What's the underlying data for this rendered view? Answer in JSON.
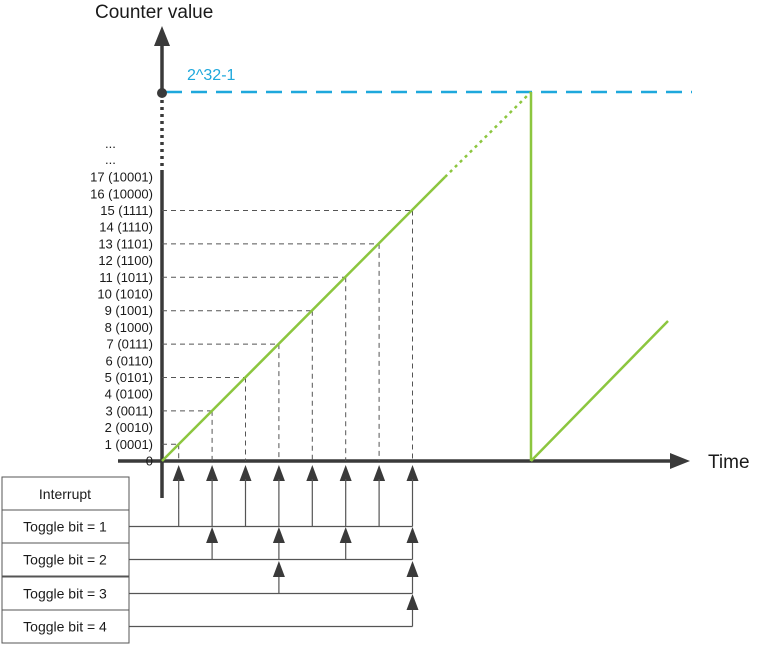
{
  "axes": {
    "y_title": "Counter value",
    "x_title": "Time"
  },
  "max_value": {
    "label": "2^32-1",
    "color": "#1ea8dc"
  },
  "y_ticks": [
    {
      "value": 0,
      "label": "0"
    },
    {
      "value": 1,
      "label": "1 (0001)"
    },
    {
      "value": 2,
      "label": "2 (0010)"
    },
    {
      "value": 3,
      "label": "3 (0011)"
    },
    {
      "value": 4,
      "label": "4 (0100)"
    },
    {
      "value": 5,
      "label": "5 (0101)"
    },
    {
      "value": 6,
      "label": "6 (0110)"
    },
    {
      "value": 7,
      "label": "7 (0111)"
    },
    {
      "value": 8,
      "label": "8 (1000)"
    },
    {
      "value": 9,
      "label": "9 (1001)"
    },
    {
      "value": 10,
      "label": "10 (1010)"
    },
    {
      "value": 11,
      "label": "11 (1011)"
    },
    {
      "value": 12,
      "label": "12 (1100)"
    },
    {
      "value": 13,
      "label": "13 (1101)"
    },
    {
      "value": 14,
      "label": "14 (1110)"
    },
    {
      "value": 15,
      "label": "15 (1111)"
    },
    {
      "value": 16,
      "label": "16 (10000)"
    },
    {
      "value": 17,
      "label": "17 (10001)"
    }
  ],
  "ellipsis": [
    "...",
    "..."
  ],
  "dashed_values": [
    1,
    3,
    5,
    7,
    9,
    11,
    13,
    15
  ],
  "table": {
    "header": "Interrupt",
    "rows": [
      {
        "label": "Toggle bit = 1",
        "toggle_values": [
          1,
          3,
          5,
          7,
          9,
          11,
          13,
          15
        ]
      },
      {
        "label": "Toggle bit = 2",
        "toggle_values": [
          3,
          7,
          11,
          15
        ]
      },
      {
        "label": "Toggle bit = 3",
        "toggle_values": [
          7,
          15
        ]
      },
      {
        "label": "Toggle bit = 4",
        "toggle_values": [
          15
        ]
      }
    ]
  },
  "colors": {
    "counter_line": "#8cc63f",
    "axis": "#3a3a3a",
    "guide": "#555555"
  }
}
